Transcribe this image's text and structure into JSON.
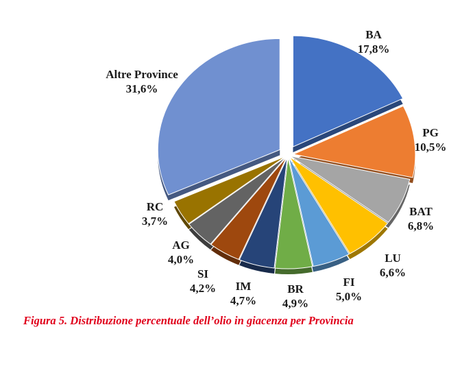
{
  "chart_data": {
    "type": "pie",
    "title": "",
    "slices": [
      {
        "label": "BA",
        "value": 17.8,
        "value_label": "17,8%",
        "color": "#4472c4"
      },
      {
        "label": "PG",
        "value": 10.5,
        "value_label": "10,5%",
        "color": "#ed7d31"
      },
      {
        "label": "BAT",
        "value": 6.8,
        "value_label": "6,8%",
        "color": "#a5a5a5"
      },
      {
        "label": "LU",
        "value": 6.6,
        "value_label": "6,6%",
        "color": "#ffc000"
      },
      {
        "label": "FI",
        "value": 5.0,
        "value_label": "5,0%",
        "color": "#5b9bd5"
      },
      {
        "label": "BR",
        "value": 4.9,
        "value_label": "4,9%",
        "color": "#70ad47"
      },
      {
        "label": "IM",
        "value": 4.7,
        "value_label": "4,7%",
        "color": "#264478"
      },
      {
        "label": "SI",
        "value": 4.2,
        "value_label": "4,2%",
        "color": "#9e480e"
      },
      {
        "label": "AG",
        "value": 4.0,
        "value_label": "4,0%",
        "color": "#636363"
      },
      {
        "label": "RC",
        "value": 3.7,
        "value_label": "3,7%",
        "color": "#997300"
      },
      {
        "label": "Altre Province",
        "value": 31.6,
        "value_label": "31,6%",
        "color": "#7090d0"
      }
    ]
  },
  "caption": "Figura 5. Distribuzione percentuale dell’olio in giacenza per Provincia"
}
